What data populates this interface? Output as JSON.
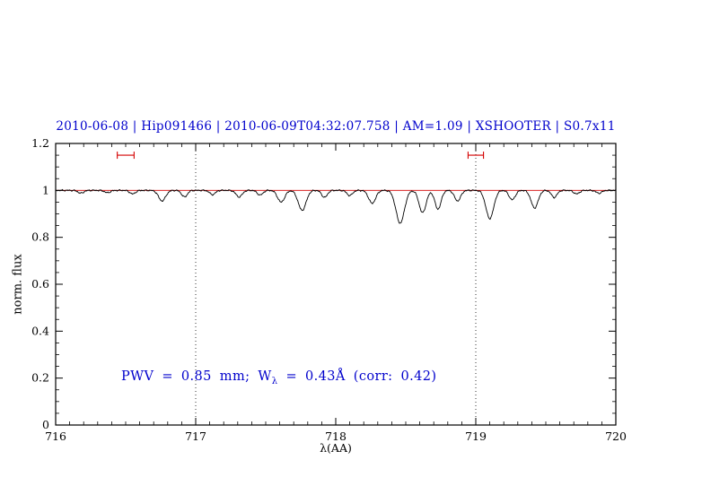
{
  "title": "2010-06-08 | Hip091466 | 2010-06-09T04:32:07.758 | AM=1.09 | XSHOOTER | S0.7x11",
  "annotation": {
    "part1": "PWV = 0.85 mm; W",
    "sub": "λ",
    "part2": " = 0.43Å (corr: 0.42)"
  },
  "axes": {
    "x_label": "λ(AA)",
    "y_label": "norm. flux"
  },
  "colors": {
    "title": "#0000cc",
    "annotation": "#0000cc",
    "continuum": "#d40000",
    "marker": "#d40000",
    "spectrum": "#000000",
    "dotted": "#333333",
    "frame": "#000000"
  },
  "chart_data": {
    "type": "line",
    "title": "2010-06-08 | Hip091466 | 2010-06-09T04:32:07.758 | AM=1.09 | XSHOOTER | S0.7x11",
    "xlabel": "λ(AA)",
    "ylabel": "norm. flux",
    "xlim": [
      716,
      720
    ],
    "ylim": [
      0,
      1.2
    ],
    "grid": false,
    "xticks": {
      "values": [
        716,
        717,
        718,
        719,
        720
      ],
      "labels": [
        "716",
        "717",
        "718",
        "719",
        "720"
      ],
      "minor_step": 0.1
    },
    "yticks": {
      "values": [
        0,
        0.2,
        0.4,
        0.6,
        0.8,
        1,
        1.2
      ],
      "labels": [
        "0",
        "0.2",
        "0.4",
        "0.6",
        "0.8",
        "1",
        "1.2"
      ],
      "minor_step": 0.05
    },
    "reference_lines": {
      "horizontal": [
        {
          "y": 1.0,
          "color": "#d40000",
          "style": "solid"
        }
      ],
      "vertical": [
        {
          "x": 717,
          "style": "dotted"
        },
        {
          "x": 719,
          "style": "dotted"
        }
      ]
    },
    "markers": [
      {
        "x": 716.5,
        "y": 1.15,
        "halfwidth": 0.06,
        "color": "#d40000"
      },
      {
        "x": 719.0,
        "y": 1.15,
        "halfwidth": 0.055,
        "color": "#d40000"
      }
    ],
    "spectrum": {
      "continuum": 1.0,
      "noise": 0.004,
      "features": [
        {
          "center": 716.18,
          "depth": 0.012,
          "sigma": 0.02
        },
        {
          "center": 716.37,
          "depth": 0.01,
          "sigma": 0.02
        },
        {
          "center": 716.55,
          "depth": 0.015,
          "sigma": 0.02
        },
        {
          "center": 716.76,
          "depth": 0.045,
          "sigma": 0.025
        },
        {
          "center": 716.92,
          "depth": 0.028,
          "sigma": 0.02
        },
        {
          "center": 717.12,
          "depth": 0.018,
          "sigma": 0.02
        },
        {
          "center": 717.31,
          "depth": 0.028,
          "sigma": 0.022
        },
        {
          "center": 717.46,
          "depth": 0.02,
          "sigma": 0.02
        },
        {
          "center": 717.61,
          "depth": 0.05,
          "sigma": 0.025
        },
        {
          "center": 717.76,
          "depth": 0.085,
          "sigma": 0.028
        },
        {
          "center": 717.92,
          "depth": 0.03,
          "sigma": 0.02
        },
        {
          "center": 718.1,
          "depth": 0.022,
          "sigma": 0.02
        },
        {
          "center": 718.26,
          "depth": 0.055,
          "sigma": 0.025
        },
        {
          "center": 718.46,
          "depth": 0.14,
          "sigma": 0.03
        },
        {
          "center": 718.62,
          "depth": 0.095,
          "sigma": 0.025
        },
        {
          "center": 718.73,
          "depth": 0.08,
          "sigma": 0.022
        },
        {
          "center": 718.87,
          "depth": 0.045,
          "sigma": 0.022
        },
        {
          "center": 719.1,
          "depth": 0.12,
          "sigma": 0.028
        },
        {
          "center": 719.26,
          "depth": 0.04,
          "sigma": 0.022
        },
        {
          "center": 719.42,
          "depth": 0.075,
          "sigma": 0.025
        },
        {
          "center": 719.56,
          "depth": 0.03,
          "sigma": 0.02
        },
        {
          "center": 719.72,
          "depth": 0.015,
          "sigma": 0.02
        },
        {
          "center": 719.88,
          "depth": 0.012,
          "sigma": 0.02
        }
      ]
    }
  }
}
